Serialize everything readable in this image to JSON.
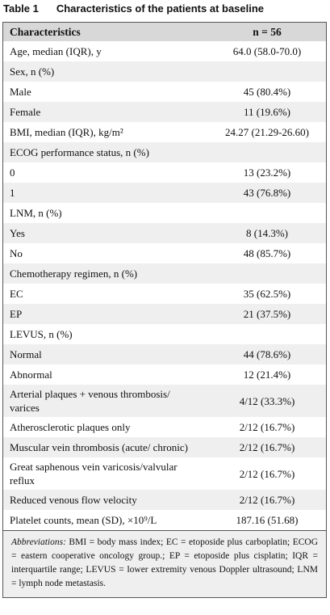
{
  "title": {
    "label": "Table 1",
    "text": "Characteristics of the patients at baseline"
  },
  "table": {
    "header": [
      "Characteristics",
      "n = 56"
    ],
    "rows": [
      {
        "label": "Age, median (IQR), y",
        "value": "64.0 (58.0-70.0)"
      },
      {
        "label": "Sex, n (%)"
      },
      {
        "label": "Male",
        "value": "45 (80.4%)"
      },
      {
        "label": "Female",
        "value": "11 (19.6%)"
      },
      {
        "label": "BMI, median (IQR), kg/m²",
        "value": "24.27 (21.29-26.60)"
      },
      {
        "label": "ECOG performance status, n (%)"
      },
      {
        "label": "0",
        "value": "13 (23.2%)"
      },
      {
        "label": "1",
        "value": "43 (76.8%)"
      },
      {
        "label": "LNM, n (%)"
      },
      {
        "label": "Yes",
        "value": "8 (14.3%)"
      },
      {
        "label": "No",
        "value": "48 (85.7%)"
      },
      {
        "label": "Chemotherapy regimen, n (%)"
      },
      {
        "label": "EC",
        "value": "35 (62.5%)"
      },
      {
        "label": "EP",
        "value": "21 (37.5%)"
      },
      {
        "label": "LEVUS, n (%)"
      },
      {
        "label": "Normal",
        "value": "44 (78.6%)"
      },
      {
        "label": "Abnormal",
        "value": "12 (21.4%)"
      },
      {
        "label": "Arterial plaques + venous thrombosis/ varices",
        "value": "4/12 (33.3%)"
      },
      {
        "label": "Atherosclerotic plaques only",
        "value": "2/12 (16.7%)"
      },
      {
        "label": "Muscular vein thrombosis (acute/ chronic)",
        "value": "2/12 (16.7%)"
      },
      {
        "label": "Great saphenous vein varicosis/valvular reflux",
        "value": "2/12 (16.7%)"
      },
      {
        "label": "Reduced venous flow velocity",
        "value": "2/12 (16.7%)"
      },
      {
        "label": "Platelet counts, mean (SD), ×10⁹/L",
        "value": "187.16 (51.68)"
      }
    ]
  },
  "footnote": {
    "lead": "Abbreviations:",
    "text": "BMI = body mass index; EC = etoposide plus carboplatin; ECOG = eastern cooperative oncology group.; EP = etoposide plus cisplatin; IQR = interquartile range; LEVUS = lower extremity venous Doppler ultrasound; LNM = lymph node metastasis."
  }
}
